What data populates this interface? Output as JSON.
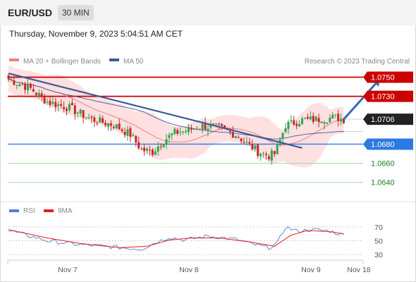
{
  "header": {
    "symbol": "EUR/USD",
    "interval": "30 MIN",
    "datetime": "Thursday, November 9, 2023 5:04:51 AM CET"
  },
  "legend": {
    "ma20_bb": "MA 20 + Bollinger Bands",
    "ma50": "MA 50",
    "credit": "Research © 2023 Trading Central",
    "rsi": "RSI",
    "rsi_ma": "9MA"
  },
  "colors": {
    "up_candle": "#2ea44f",
    "down_candle": "#c62828",
    "ma20_bb": "#f08080",
    "bb_fill": "#ffd6d6",
    "ma50": "#3a5a99",
    "resistance": "#cc0000",
    "support": "#2a7ae2",
    "target": "#2e9e2e",
    "trendline": "#3a5a99",
    "arrow": "#2f6db5",
    "rsi": "#4f7fd6",
    "rsi_ma": "#e02020"
  },
  "chart_data": [
    {
      "type": "candlestick",
      "title": "EUR/USD",
      "x_ticks": [
        "Nov 7",
        "Nov 8",
        "Nov 9",
        "Nov 18"
      ],
      "ylim": [
        1.0628,
        1.0757
      ],
      "levels": [
        {
          "value": 1.075,
          "label": "1.0750",
          "kind": "resistance"
        },
        {
          "value": 1.073,
          "label": "1.0730",
          "kind": "resistance"
        },
        {
          "value": 1.0706,
          "label": "1.0706",
          "kind": "last"
        },
        {
          "value": 1.068,
          "label": "1.0680",
          "kind": "support"
        },
        {
          "value": 1.066,
          "label": "1.0660",
          "kind": "target"
        },
        {
          "value": 1.064,
          "label": "1.0640",
          "kind": "target"
        }
      ],
      "anchors": [
        {
          "i": 0,
          "c": 1.0748
        },
        {
          "i": 8,
          "c": 1.0738
        },
        {
          "i": 14,
          "c": 1.0724
        },
        {
          "i": 22,
          "c": 1.0718
        },
        {
          "i": 30,
          "c": 1.0706
        },
        {
          "i": 38,
          "c": 1.07
        },
        {
          "i": 44,
          "c": 1.069
        },
        {
          "i": 48,
          "c": 1.0674
        },
        {
          "i": 52,
          "c": 1.0672
        },
        {
          "i": 56,
          "c": 1.0684
        },
        {
          "i": 60,
          "c": 1.0692
        },
        {
          "i": 64,
          "c": 1.0694
        },
        {
          "i": 70,
          "c": 1.0699
        },
        {
          "i": 76,
          "c": 1.0697
        },
        {
          "i": 82,
          "c": 1.069
        },
        {
          "i": 86,
          "c": 1.0681
        },
        {
          "i": 90,
          "c": 1.0672
        },
        {
          "i": 94,
          "c": 1.0668
        },
        {
          "i": 96,
          "c": 1.067
        },
        {
          "i": 98,
          "c": 1.0684
        },
        {
          "i": 100,
          "c": 1.07
        },
        {
          "i": 106,
          "c": 1.0705
        },
        {
          "i": 112,
          "c": 1.0706
        },
        {
          "i": 118,
          "c": 1.0708
        },
        {
          "i": 121,
          "c": 1.0706
        }
      ],
      "trendline": [
        {
          "i": 0,
          "c": 1.0754
        },
        {
          "i": 106,
          "c": 1.0676
        }
      ],
      "forecast_arrow": [
        {
          "i": 121,
          "c": 1.0706
        },
        {
          "i": 134,
          "c": 1.0748
        }
      ]
    },
    {
      "type": "line",
      "title": "RSI",
      "ylim": [
        25,
        80
      ],
      "y_ticks": [
        70,
        50,
        30
      ],
      "series": [
        {
          "name": "RSI",
          "anchors": [
            {
              "i": 0,
              "v": 65
            },
            {
              "i": 14,
              "v": 50
            },
            {
              "i": 24,
              "v": 45
            },
            {
              "i": 34,
              "v": 42
            },
            {
              "i": 48,
              "v": 38
            },
            {
              "i": 54,
              "v": 49
            },
            {
              "i": 58,
              "v": 55
            },
            {
              "i": 64,
              "v": 51
            },
            {
              "i": 72,
              "v": 57
            },
            {
              "i": 82,
              "v": 52
            },
            {
              "i": 88,
              "v": 45
            },
            {
              "i": 94,
              "v": 40
            },
            {
              "i": 97,
              "v": 46
            },
            {
              "i": 100,
              "v": 70
            },
            {
              "i": 104,
              "v": 64
            },
            {
              "i": 110,
              "v": 66
            },
            {
              "i": 116,
              "v": 64
            },
            {
              "i": 121,
              "v": 58
            }
          ]
        },
        {
          "name": "9MA",
          "anchors": [
            {
              "i": 0,
              "v": 66
            },
            {
              "i": 14,
              "v": 54
            },
            {
              "i": 26,
              "v": 46
            },
            {
              "i": 40,
              "v": 40
            },
            {
              "i": 50,
              "v": 42
            },
            {
              "i": 58,
              "v": 51
            },
            {
              "i": 66,
              "v": 54
            },
            {
              "i": 76,
              "v": 54
            },
            {
              "i": 86,
              "v": 49
            },
            {
              "i": 96,
              "v": 42
            },
            {
              "i": 102,
              "v": 58
            },
            {
              "i": 108,
              "v": 65
            },
            {
              "i": 116,
              "v": 63
            },
            {
              "i": 124,
              "v": 58
            }
          ]
        }
      ]
    }
  ]
}
